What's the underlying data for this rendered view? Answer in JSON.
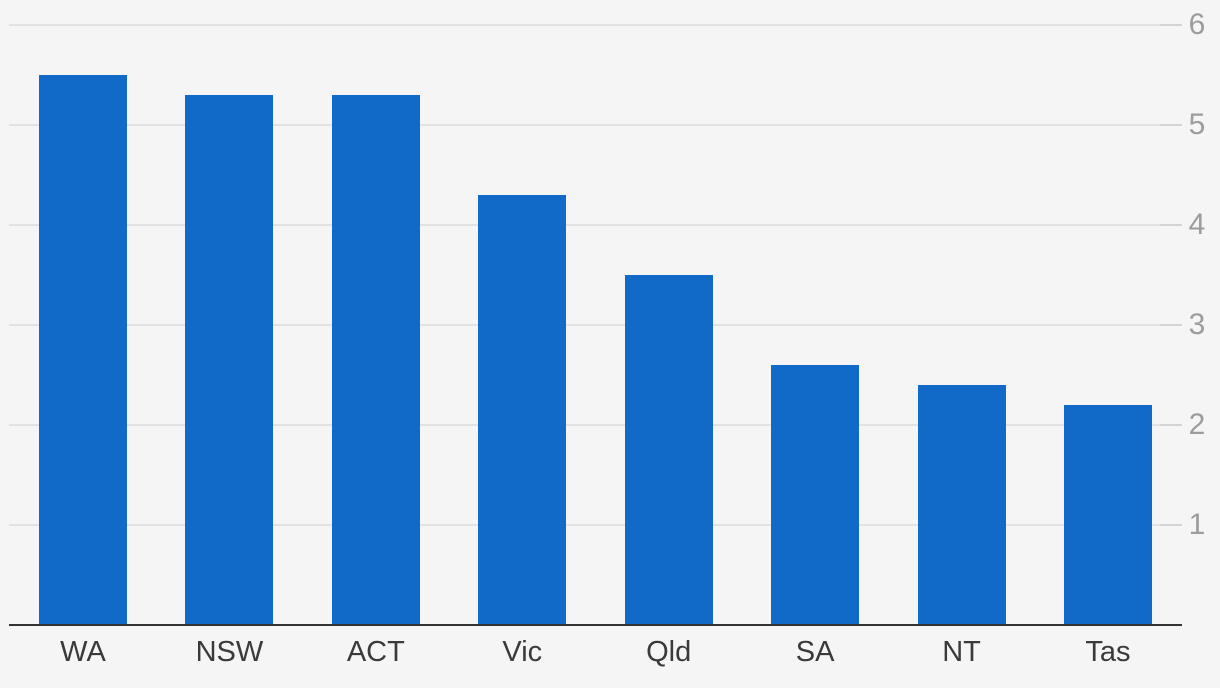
{
  "chart_data": {
    "type": "bar",
    "categories": [
      "WA",
      "NSW",
      "ACT",
      "Vic",
      "Qld",
      "SA",
      "NT",
      "Tas"
    ],
    "values": [
      5.5,
      5.3,
      5.3,
      4.3,
      3.5,
      2.6,
      2.4,
      2.2
    ],
    "yticks": [
      1,
      2,
      3,
      4,
      5,
      6
    ],
    "ylim": [
      0,
      6
    ],
    "ytick_side": "right",
    "grid": true,
    "legend": "none",
    "colors": {
      "bar": "#116ac8",
      "background": "#f5f5f5",
      "gridline": "#e2e2e2",
      "gridline_tick": "#d4d4d4",
      "axis_line": "#333333",
      "ytick_label": "#9c9c9c",
      "xtick_label": "#3a3a3a"
    }
  }
}
